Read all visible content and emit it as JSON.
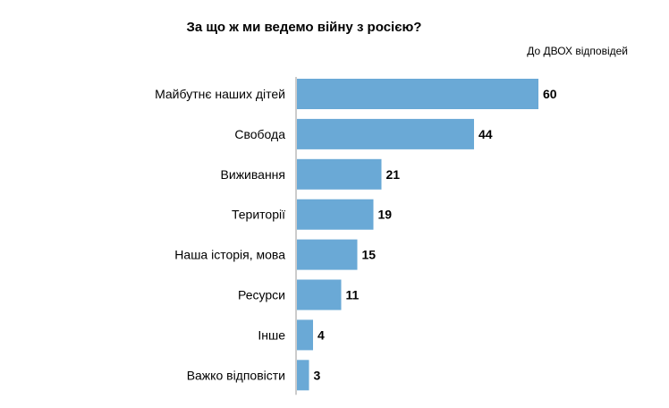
{
  "chart_data": {
    "type": "bar",
    "orientation": "horizontal",
    "title": "За що ж ми ведемо війну з росією?",
    "note": "До ДВОХ відповідей",
    "categories": [
      "Майбутнє наших дітей",
      "Свобода",
      "Виживання",
      "Території",
      "Наша історія, мова",
      "Ресурси",
      "Інше",
      "Важко відповісти"
    ],
    "values": [
      60,
      44,
      21,
      19,
      15,
      11,
      4,
      3
    ],
    "xlim": [
      0,
      60
    ],
    "grid": false,
    "legend": "none",
    "bar_color": "#6aa9d6",
    "axis_color": "#9a9a9a"
  }
}
